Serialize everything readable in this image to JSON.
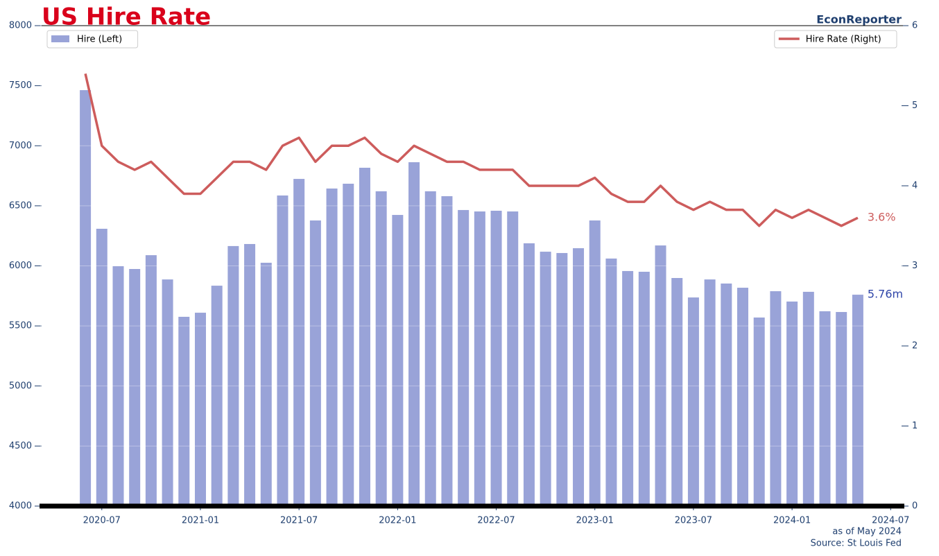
{
  "chart_data": {
    "type": "bar_line",
    "title": "US Hire Rate",
    "brand": "EconReporter",
    "footnotes": [
      "as of May 2024",
      "Source: St Louis Fed"
    ],
    "x": [
      "2020-06",
      "2020-07",
      "2020-08",
      "2020-09",
      "2020-10",
      "2020-11",
      "2020-12",
      "2021-01",
      "2021-02",
      "2021-03",
      "2021-04",
      "2021-05",
      "2021-06",
      "2021-07",
      "2021-08",
      "2021-09",
      "2021-10",
      "2021-11",
      "2021-12",
      "2022-01",
      "2022-02",
      "2022-03",
      "2022-04",
      "2022-05",
      "2022-06",
      "2022-07",
      "2022-08",
      "2022-09",
      "2022-10",
      "2022-11",
      "2022-12",
      "2023-01",
      "2023-02",
      "2023-03",
      "2023-04",
      "2023-05",
      "2023-06",
      "2023-07",
      "2023-08",
      "2023-09",
      "2023-10",
      "2023-11",
      "2023-12",
      "2024-01",
      "2024-02",
      "2024-03",
      "2024-04",
      "2024-05"
    ],
    "xlim": [
      "2020-03",
      "2024-08"
    ],
    "xticks": [
      "2020-07",
      "2021-01",
      "2021-07",
      "2022-01",
      "2022-07",
      "2023-01",
      "2023-07",
      "2024-01",
      "2024-07"
    ],
    "ylim": [
      4000,
      8000
    ],
    "yticks": [
      4000,
      4500,
      5000,
      5500,
      6000,
      6500,
      7000,
      7500,
      8000
    ],
    "y2lim": [
      0,
      6
    ],
    "y2ticks": [
      0,
      1,
      2,
      3,
      4,
      5,
      6
    ],
    "grid": true,
    "series": [
      {
        "name": "Hire (Left)",
        "type": "bar",
        "color": "#99a3d8",
        "legend": "upper left",
        "end_label": "5.76m",
        "values": [
          7463,
          6309,
          5997,
          5974,
          6089,
          5887,
          5576,
          5610,
          5835,
          6165,
          6182,
          6026,
          6586,
          6724,
          6378,
          6644,
          6684,
          6817,
          6621,
          6424,
          6863,
          6621,
          6580,
          6465,
          6453,
          6459,
          6453,
          6188,
          6118,
          6107,
          6147,
          6378,
          6061,
          5957,
          5951,
          6170,
          5899,
          5737,
          5887,
          5853,
          5818,
          5570,
          5789,
          5703,
          5784,
          5622,
          5616,
          5760
        ]
      },
      {
        "name": "Hire Rate (Right)",
        "type": "line",
        "axis": "y2",
        "color": "#cd5c5c",
        "legend": "upper right",
        "end_label": "3.6%",
        "values": [
          5.4,
          4.5,
          4.3,
          4.2,
          4.3,
          4.1,
          3.9,
          3.9,
          4.1,
          4.3,
          4.3,
          4.2,
          4.5,
          4.6,
          4.3,
          4.5,
          4.5,
          4.6,
          4.4,
          4.3,
          4.5,
          4.4,
          4.3,
          4.3,
          4.2,
          4.2,
          4.2,
          4.0,
          4.0,
          4.0,
          4.0,
          4.1,
          3.9,
          3.8,
          3.8,
          4.0,
          3.8,
          3.7,
          3.8,
          3.7,
          3.7,
          3.5,
          3.7,
          3.6,
          3.7,
          3.6,
          3.5,
          3.6
        ]
      }
    ]
  }
}
